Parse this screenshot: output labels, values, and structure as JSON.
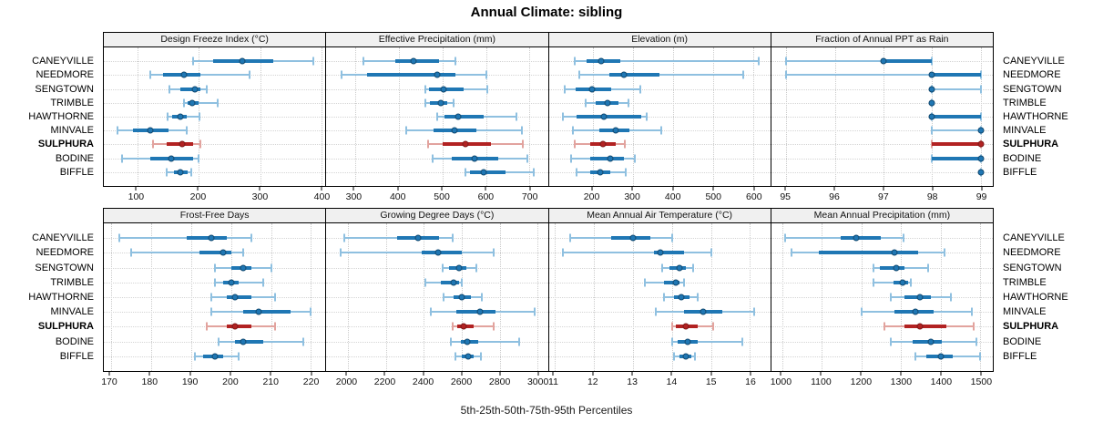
{
  "title": "Annual Climate: sibling",
  "caption": "5th-25th-50th-75th-95th Percentiles",
  "quantile_labels": [
    "5th",
    "25th",
    "50th",
    "75th",
    "95th"
  ],
  "sites": [
    {
      "name": "CANEYVILLE",
      "highlight": false
    },
    {
      "name": "NEEDMORE",
      "highlight": false
    },
    {
      "name": "SENGTOWN",
      "highlight": false
    },
    {
      "name": "TRIMBLE",
      "highlight": false
    },
    {
      "name": "HAWTHORNE",
      "highlight": false
    },
    {
      "name": "MINVALE",
      "highlight": false
    },
    {
      "name": "SULPHURA",
      "highlight": true
    },
    {
      "name": "BODINE",
      "highlight": false
    },
    {
      "name": "BIFFLE",
      "highlight": false
    }
  ],
  "colors": {
    "blue": "#1f77b4",
    "blue_light": "#8fc0e0",
    "blue_dark": "#11486f",
    "red": "#b22222",
    "red_light": "#e2a39e",
    "red_dark": "#7c1717",
    "grid": "#cccccc",
    "header_bg": "#f0f0f0",
    "border": "#000000"
  },
  "chart_data": [
    {
      "type": "dot-whisker",
      "panel_row": 0,
      "title": "Design Freeze Index (°C)",
      "xticks": [
        100,
        200,
        300,
        400
      ],
      "xlim": [
        45,
        406
      ],
      "rows": [
        {
          "site": "CANEYVILLE",
          "q": [
            190,
            223,
            271,
            321,
            386
          ]
        },
        {
          "site": "NEEDMORE",
          "q": [
            121,
            141,
            176,
            203,
            282
          ]
        },
        {
          "site": "SENGTOWN",
          "q": [
            152,
            169,
            193,
            203,
            213
          ]
        },
        {
          "site": "TRIMBLE",
          "q": [
            176,
            182,
            189,
            200,
            230
          ]
        },
        {
          "site": "HAWTHORNE",
          "q": [
            149,
            156,
            169,
            180,
            201
          ]
        },
        {
          "site": "MINVALE",
          "q": [
            67,
            93,
            120,
            150,
            180
          ]
        },
        {
          "site": "SULPHURA",
          "q": [
            125,
            148,
            173,
            190,
            202
          ]
        },
        {
          "site": "BODINE",
          "q": [
            74,
            121,
            155,
            190,
            199
          ]
        },
        {
          "site": "BIFFLE",
          "q": [
            147,
            159,
            169,
            181,
            188
          ]
        }
      ]
    },
    {
      "type": "dot-whisker",
      "panel_row": 0,
      "title": "Effective Precipitation (mm)",
      "xticks": [
        300,
        400,
        500,
        600,
        700
      ],
      "xlim": [
        234,
        742
      ],
      "rows": [
        {
          "site": "CANEYVILLE",
          "q": [
            319,
            392,
            435,
            492,
            530
          ]
        },
        {
          "site": "NEEDMORE",
          "q": [
            270,
            327,
            489,
            531,
            600
          ]
        },
        {
          "site": "SENGTOWN",
          "q": [
            462,
            470,
            502,
            549,
            603
          ]
        },
        {
          "site": "TRIMBLE",
          "q": [
            462,
            472,
            497,
            511,
            525
          ]
        },
        {
          "site": "HAWTHORNE",
          "q": [
            488,
            504,
            537,
            594,
            669
          ]
        },
        {
          "site": "MINVALE",
          "q": [
            417,
            480,
            528,
            579,
            683
          ]
        },
        {
          "site": "SULPHURA",
          "q": [
            468,
            500,
            554,
            612,
            685
          ]
        },
        {
          "site": "BODINE",
          "q": [
            478,
            521,
            574,
            629,
            695
          ]
        },
        {
          "site": "BIFFLE",
          "q": [
            553,
            563,
            594,
            644,
            710
          ]
        }
      ]
    },
    {
      "type": "dot-whisker",
      "panel_row": 0,
      "title": "Elevation (m)",
      "xticks": [
        200,
        300,
        400,
        500,
        600
      ],
      "xlim": [
        91,
        642
      ],
      "rows": [
        {
          "site": "CANEYVILLE",
          "q": [
            156,
            185,
            221,
            268,
            613
          ]
        },
        {
          "site": "NEEDMORE",
          "q": [
            166,
            241,
            279,
            366,
            575
          ]
        },
        {
          "site": "SENGTOWN",
          "q": [
            131,
            157,
            199,
            247,
            319
          ]
        },
        {
          "site": "TRIMBLE",
          "q": [
            182,
            208,
            236,
            264,
            290
          ]
        },
        {
          "site": "HAWTHORNE",
          "q": [
            127,
            161,
            229,
            320,
            335
          ]
        },
        {
          "site": "MINVALE",
          "q": [
            150,
            217,
            258,
            292,
            370
          ]
        },
        {
          "site": "SULPHURA",
          "q": [
            155,
            195,
            225,
            257,
            281
          ]
        },
        {
          "site": "BODINE",
          "q": [
            146,
            195,
            243,
            277,
            305
          ]
        },
        {
          "site": "BIFFLE",
          "q": [
            159,
            195,
            220,
            243,
            282
          ]
        }
      ]
    },
    {
      "type": "dot-whisker",
      "panel_row": 0,
      "title": "Fraction of Annual PPT as Rain",
      "xticks": [
        95,
        96,
        97,
        98,
        99
      ],
      "xlim": [
        94.69,
        99.25
      ],
      "rows": [
        {
          "site": "CANEYVILLE",
          "q": [
            95,
            97,
            97,
            98,
            98
          ]
        },
        {
          "site": "NEEDMORE",
          "q": [
            95,
            98,
            98,
            99,
            99
          ]
        },
        {
          "site": "SENGTOWN",
          "q": [
            98,
            98,
            98,
            98,
            99
          ]
        },
        {
          "site": "TRIMBLE",
          "q": [
            98,
            98,
            98,
            98,
            98
          ]
        },
        {
          "site": "HAWTHORNE",
          "q": [
            98,
            98,
            98,
            99,
            99
          ]
        },
        {
          "site": "MINVALE",
          "q": [
            98,
            99,
            99,
            99,
            99
          ]
        },
        {
          "site": "SULPHURA",
          "q": [
            98,
            98,
            99,
            99,
            99
          ]
        },
        {
          "site": "BODINE",
          "q": [
            98,
            98,
            99,
            99,
            99
          ]
        },
        {
          "site": "BIFFLE",
          "q": [
            99,
            99,
            99,
            99,
            99
          ]
        }
      ]
    },
    {
      "type": "dot-whisker",
      "panel_row": 1,
      "title": "Frost-Free Days",
      "xticks": [
        170,
        180,
        190,
        200,
        210,
        220
      ],
      "xlim": [
        168.2,
        223.6
      ],
      "rows": [
        {
          "site": "CANEYVILLE",
          "q": [
            172,
            189,
            195,
            199,
            205
          ]
        },
        {
          "site": "NEEDMORE",
          "q": [
            175,
            192,
            198,
            200,
            203
          ]
        },
        {
          "site": "SENGTOWN",
          "q": [
            196,
            200,
            203,
            205,
            210
          ]
        },
        {
          "site": "TRIMBLE",
          "q": [
            196,
            198,
            200,
            202,
            208
          ]
        },
        {
          "site": "HAWTHORNE",
          "q": [
            195,
            199,
            201,
            205,
            211
          ]
        },
        {
          "site": "MINVALE",
          "q": [
            195,
            203,
            207,
            215,
            220
          ]
        },
        {
          "site": "SULPHURA",
          "q": [
            194,
            199,
            201,
            205,
            211
          ]
        },
        {
          "site": "BODINE",
          "q": [
            197,
            201,
            203,
            208,
            218
          ]
        },
        {
          "site": "BIFFLE",
          "q": [
            191,
            193,
            196,
            198,
            202
          ]
        }
      ]
    },
    {
      "type": "dot-whisker",
      "panel_row": 1,
      "title": "Growing Degree Days (°C)",
      "xticks": [
        2000,
        2200,
        2400,
        2600,
        2800,
        3000
      ],
      "xlim": [
        1886,
        3054
      ],
      "rows": [
        {
          "site": "CANEYVILLE",
          "q": [
            1980,
            2260,
            2370,
            2480,
            2550
          ]
        },
        {
          "site": "NEEDMORE",
          "q": [
            1960,
            2390,
            2475,
            2600,
            2770
          ]
        },
        {
          "site": "SENGTOWN",
          "q": [
            2500,
            2535,
            2585,
            2625,
            2675
          ]
        },
        {
          "site": "TRIMBLE",
          "q": [
            2410,
            2490,
            2555,
            2585,
            2600
          ]
        },
        {
          "site": "HAWTHORNE",
          "q": [
            2505,
            2555,
            2600,
            2650,
            2705
          ]
        },
        {
          "site": "MINVALE",
          "q": [
            2435,
            2570,
            2695,
            2780,
            2985
          ]
        },
        {
          "site": "SULPHURA",
          "q": [
            2550,
            2575,
            2610,
            2665,
            2770
          ]
        },
        {
          "site": "BODINE",
          "q": [
            2545,
            2595,
            2630,
            2685,
            2905
          ]
        },
        {
          "site": "BIFFLE",
          "q": [
            2565,
            2600,
            2635,
            2665,
            2700
          ]
        }
      ]
    },
    {
      "type": "dot-whisker",
      "panel_row": 1,
      "title": "Mean Annual Air Temperature (°C)",
      "xticks": [
        11,
        12,
        13,
        14,
        15,
        16
      ],
      "xlim": [
        10.85,
        16.52
      ],
      "rows": [
        {
          "site": "CANEYVILLE",
          "q": [
            11.4,
            12.45,
            13.0,
            13.45,
            14.0
          ]
        },
        {
          "site": "NEEDMORE",
          "q": [
            11.2,
            13.55,
            13.7,
            14.3,
            15.0
          ]
        },
        {
          "site": "SENGTOWN",
          "q": [
            13.75,
            13.95,
            14.2,
            14.35,
            14.55
          ]
        },
        {
          "site": "TRIMBLE",
          "q": [
            13.3,
            13.8,
            14.1,
            14.2,
            14.3
          ]
        },
        {
          "site": "HAWTHORNE",
          "q": [
            13.8,
            14.05,
            14.25,
            14.45,
            14.65
          ]
        },
        {
          "site": "MINVALE",
          "q": [
            13.6,
            14.3,
            14.8,
            15.3,
            16.1
          ]
        },
        {
          "site": "SULPHURA",
          "q": [
            14.0,
            14.1,
            14.35,
            14.65,
            15.05
          ]
        },
        {
          "site": "BODINE",
          "q": [
            14.0,
            14.15,
            14.4,
            14.65,
            15.8
          ]
        },
        {
          "site": "BIFFLE",
          "q": [
            14.05,
            14.2,
            14.35,
            14.5,
            14.6
          ]
        }
      ]
    },
    {
      "type": "dot-whisker",
      "panel_row": 1,
      "title": "Mean Annual Precipitation (mm)",
      "xticks": [
        1000,
        1100,
        1200,
        1300,
        1400,
        1500
      ],
      "xlim": [
        973,
        1531
      ],
      "rows": [
        {
          "site": "CANEYVILLE",
          "q": [
            1009,
            1148,
            1187,
            1250,
            1306
          ]
        },
        {
          "site": "NEEDMORE",
          "q": [
            1023,
            1092,
            1283,
            1342,
            1410
          ]
        },
        {
          "site": "SENGTOWN",
          "q": [
            1231,
            1246,
            1287,
            1308,
            1368
          ]
        },
        {
          "site": "TRIMBLE",
          "q": [
            1231,
            1281,
            1304,
            1317,
            1324
          ]
        },
        {
          "site": "HAWTHORNE",
          "q": [
            1273,
            1308,
            1347,
            1376,
            1425
          ]
        },
        {
          "site": "MINVALE",
          "q": [
            1200,
            1283,
            1336,
            1383,
            1479
          ]
        },
        {
          "site": "SULPHURA",
          "q": [
            1258,
            1308,
            1348,
            1414,
            1483
          ]
        },
        {
          "site": "BODINE",
          "q": [
            1273,
            1330,
            1376,
            1402,
            1489
          ]
        },
        {
          "site": "BIFFLE",
          "q": [
            1336,
            1364,
            1401,
            1429,
            1500
          ]
        }
      ]
    }
  ]
}
